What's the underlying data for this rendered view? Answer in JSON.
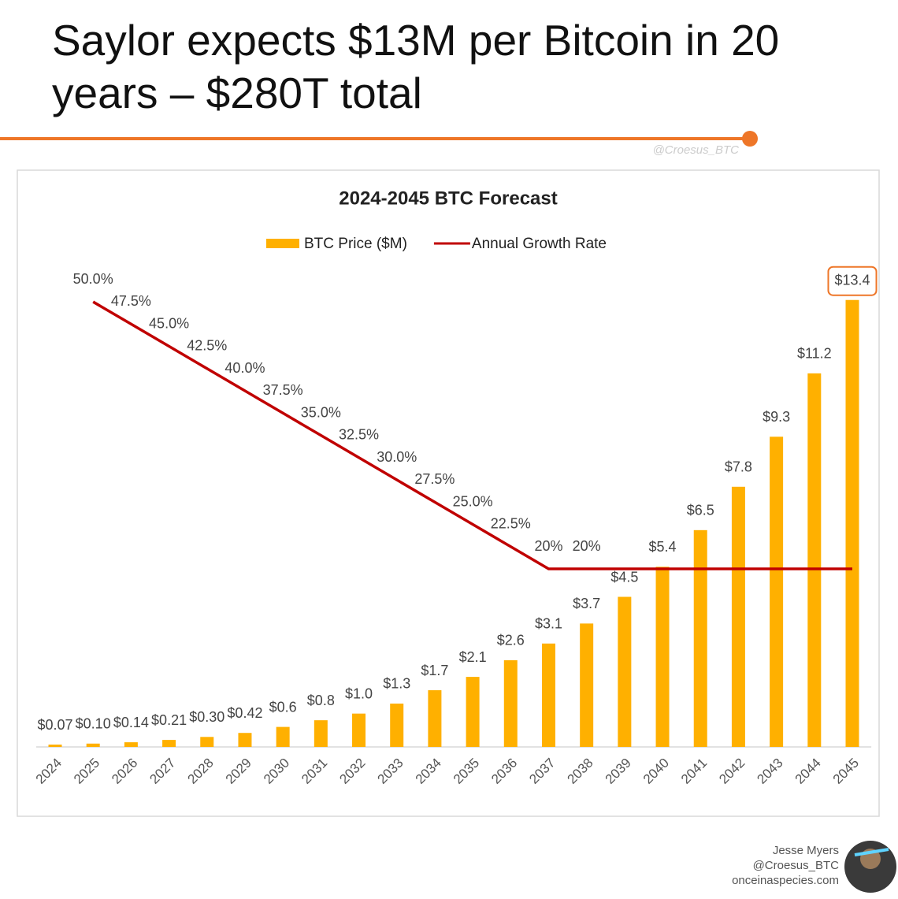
{
  "header": {
    "title": "Saylor expects $13M per Bitcoin in 20 years – $280T total",
    "watermark": "@Croesus_BTC"
  },
  "chart_data": {
    "type": "combo",
    "title": "2024-2045 BTC Forecast",
    "legend": "top",
    "categories": [
      "2024",
      "2025",
      "2026",
      "2027",
      "2028",
      "2029",
      "2030",
      "2031",
      "2032",
      "2033",
      "2034",
      "2035",
      "2036",
      "2037",
      "2038",
      "2039",
      "2040",
      "2041",
      "2042",
      "2043",
      "2044",
      "2045"
    ],
    "series": [
      {
        "name": "BTC Price ($M)",
        "type": "bar",
        "color": "#FFB000",
        "values": [
          0.07,
          0.1,
          0.14,
          0.21,
          0.3,
          0.42,
          0.6,
          0.8,
          1.0,
          1.3,
          1.7,
          2.1,
          2.6,
          3.1,
          3.7,
          4.5,
          5.4,
          6.5,
          7.8,
          9.3,
          11.2,
          13.4
        ],
        "value_labels": [
          "$0.07",
          "$0.10",
          "$0.14",
          "$0.21",
          "$0.30",
          "$0.42",
          "$0.6",
          "$0.8",
          "$1.0",
          "$1.3",
          "$1.7",
          "$2.1",
          "$2.6",
          "$3.1",
          "$3.7",
          "$4.5",
          "$5.4",
          "$6.5",
          "$7.8",
          "$9.3",
          "$11.2",
          "$13.4"
        ]
      },
      {
        "name": "Annual Growth Rate",
        "type": "line",
        "axis": "y2",
        "color": "#C00000",
        "values": [
          null,
          50.0,
          47.5,
          45.0,
          42.5,
          40.0,
          37.5,
          35.0,
          32.5,
          30.0,
          27.5,
          25.0,
          22.5,
          20,
          20,
          20,
          20,
          20,
          20,
          20,
          20,
          20
        ],
        "value_labels": [
          null,
          "50.0%",
          "47.5%",
          "45.0%",
          "42.5%",
          "40.0%",
          "37.5%",
          "35.0%",
          "32.5%",
          "30.0%",
          "27.5%",
          "25.0%",
          "22.5%",
          "20%",
          "20%",
          null,
          null,
          null,
          null,
          null,
          null,
          null
        ]
      }
    ],
    "ylim": [
      0,
      15
    ],
    "y2lim": [
      0,
      56.2
    ]
  },
  "footer": {
    "author": "Jesse Myers",
    "handle": "@Croesus_BTC",
    "site": "onceinaspecies.com"
  }
}
